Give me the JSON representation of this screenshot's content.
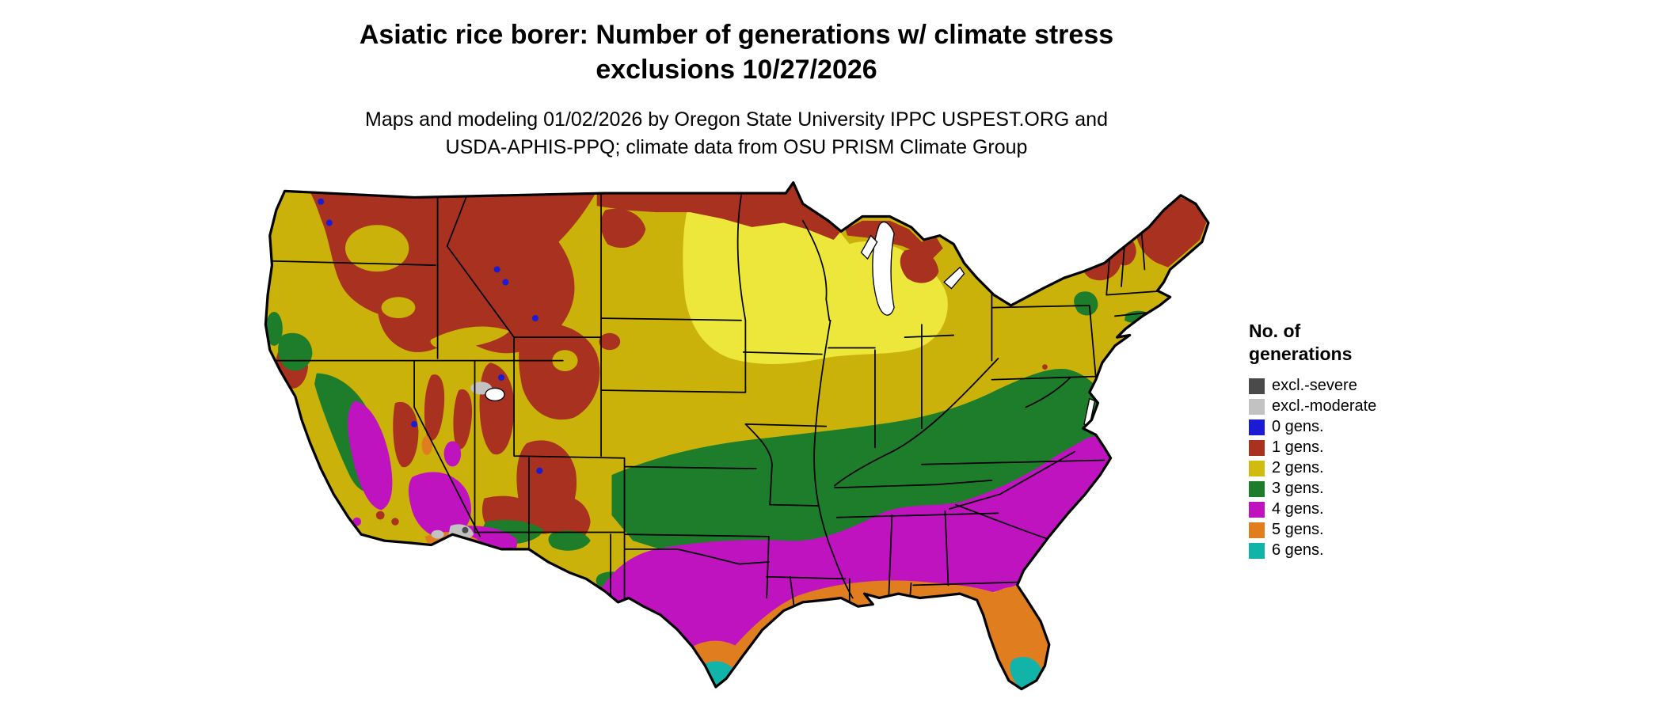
{
  "title": {
    "line1": "Asiatic rice borer: Number of generations w/ climate stress",
    "line2": "exclusions 10/27/2026"
  },
  "subtitle": {
    "line1": "Maps and modeling 01/02/2026 by Oregon State University IPPC USPEST.ORG and",
    "line2": "USDA-APHIS-PPQ; climate data from OSU PRISM Climate Group"
  },
  "legend": {
    "title_line1": "No. of",
    "title_line2": "generations",
    "items": [
      {
        "key": "exclsevere",
        "label": "excl.-severe",
        "color": "#4a4a4a"
      },
      {
        "key": "exclmoderate",
        "label": "excl.-moderate",
        "color": "#c2c2c2"
      },
      {
        "key": "gens0",
        "label": "0 gens.",
        "color": "#1b1bd4"
      },
      {
        "key": "gens1",
        "label": "1 gens.",
        "color": "#a8311f"
      },
      {
        "key": "gens2",
        "label": "2 gens.",
        "color": "#d2bb10"
      },
      {
        "key": "gens3",
        "label": "3 gens.",
        "color": "#1e7d2a"
      },
      {
        "key": "gens4",
        "label": "4 gens.",
        "color": "#c013c0"
      },
      {
        "key": "gens5",
        "label": "5 gens.",
        "color": "#e07d1e"
      },
      {
        "key": "gens6",
        "label": "6 gens.",
        "color": "#12b3a9"
      }
    ]
  },
  "map": {
    "colors": {
      "base_yellow": "#cbb20b",
      "bright_yellow": "#ece73a",
      "water_white": "#ffffff",
      "outline_black": "#000000"
    }
  }
}
